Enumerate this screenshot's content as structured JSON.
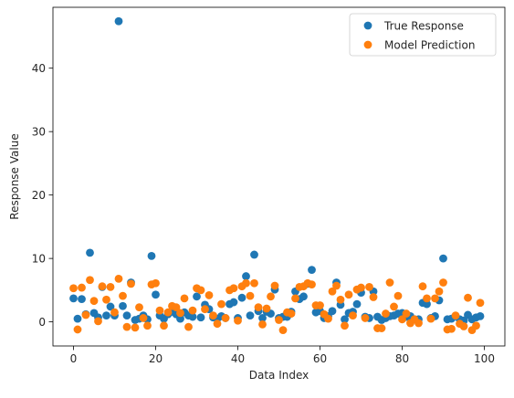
{
  "chart_data": {
    "type": "scatter",
    "title": "",
    "xlabel": "Data Index",
    "ylabel": "Response Value",
    "xlim": [
      -5,
      105
    ],
    "ylim": [
      -3.8,
      49.6
    ],
    "xticks": [
      0,
      20,
      40,
      60,
      80,
      100
    ],
    "yticks": [
      0,
      10,
      20,
      30,
      40
    ],
    "grid": false,
    "legend_position": "top-right",
    "series": [
      {
        "name": "True Response",
        "color": "#1f77b4",
        "x": [
          0,
          1,
          2,
          3,
          4,
          5,
          6,
          7,
          8,
          9,
          10,
          11,
          12,
          13,
          14,
          15,
          16,
          17,
          18,
          19,
          20,
          21,
          22,
          23,
          24,
          25,
          26,
          27,
          28,
          29,
          30,
          31,
          32,
          33,
          34,
          35,
          36,
          37,
          38,
          39,
          40,
          41,
          42,
          43,
          44,
          45,
          46,
          47,
          48,
          49,
          50,
          51,
          52,
          53,
          54,
          55,
          56,
          57,
          58,
          59,
          60,
          61,
          62,
          63,
          64,
          65,
          66,
          67,
          68,
          69,
          70,
          71,
          72,
          73,
          74,
          75,
          76,
          77,
          78,
          79,
          80,
          81,
          82,
          83,
          84,
          85,
          86,
          87,
          88,
          89,
          90,
          91,
          92,
          93,
          94,
          95,
          96,
          97,
          98,
          99
        ],
        "y": [
          3.7,
          0.5,
          3.6,
          1.2,
          10.9,
          1.4,
          0.7,
          5.5,
          1.0,
          2.4,
          1.0,
          47.4,
          2.5,
          1.0,
          6.2,
          0.3,
          0.5,
          1.0,
          0.4,
          10.4,
          4.3,
          1.0,
          0.5,
          1.2,
          1.6,
          1.2,
          0.5,
          1.5,
          1.0,
          0.8,
          4.0,
          0.7,
          2.7,
          2.0,
          0.7,
          0.5,
          0.9,
          0.6,
          2.8,
          3.1,
          0.6,
          3.8,
          7.2,
          1.0,
          10.6,
          1.7,
          0.6,
          1.6,
          1.3,
          5.1,
          0.6,
          0.8,
          0.8,
          1.6,
          4.8,
          3.6,
          4.0,
          6.0,
          8.2,
          1.5,
          1.7,
          0.6,
          0.9,
          1.7,
          6.2,
          2.7,
          0.4,
          1.4,
          1.6,
          2.8,
          4.6,
          0.8,
          0.6,
          4.8,
          0.8,
          0.3,
          0.6,
          0.9,
          1.0,
          1.3,
          1.4,
          0.8,
          0.9,
          0.4,
          0.4,
          3.0,
          2.8,
          0.6,
          0.9,
          3.4,
          10.0,
          0.4,
          0.5,
          0.9,
          0.4,
          0.2,
          1.1,
          0.4,
          0.7,
          0.9
        ]
      },
      {
        "name": "Model Prediction",
        "color": "#ff7f0e",
        "x": [
          0,
          1,
          2,
          3,
          4,
          5,
          6,
          7,
          8,
          9,
          10,
          11,
          12,
          13,
          14,
          15,
          16,
          17,
          18,
          19,
          20,
          21,
          22,
          23,
          24,
          25,
          26,
          27,
          28,
          29,
          30,
          31,
          32,
          33,
          34,
          35,
          36,
          37,
          38,
          39,
          40,
          41,
          42,
          43,
          44,
          45,
          46,
          47,
          48,
          49,
          50,
          51,
          52,
          53,
          54,
          55,
          56,
          57,
          58,
          59,
          60,
          61,
          62,
          63,
          64,
          65,
          66,
          67,
          68,
          69,
          70,
          71,
          72,
          73,
          74,
          75,
          76,
          77,
          78,
          79,
          80,
          81,
          82,
          83,
          84,
          85,
          86,
          87,
          88,
          89,
          90,
          91,
          92,
          93,
          94,
          95,
          96,
          97,
          98,
          99
        ],
        "y": [
          5.3,
          -1.2,
          5.4,
          1.1,
          6.6,
          3.3,
          0.1,
          5.6,
          3.5,
          5.5,
          1.5,
          6.8,
          4.1,
          -0.8,
          6.0,
          -0.9,
          2.3,
          0.6,
          -0.6,
          5.9,
          6.1,
          1.8,
          -0.6,
          1.5,
          2.5,
          2.3,
          1.4,
          3.7,
          -0.8,
          1.8,
          5.3,
          5.0,
          2.0,
          4.2,
          1.0,
          -0.3,
          2.8,
          0.6,
          5.0,
          5.3,
          0.2,
          5.6,
          6.1,
          4.1,
          6.1,
          2.3,
          -0.4,
          2.1,
          4.0,
          5.7,
          0.3,
          -1.3,
          1.5,
          1.3,
          3.7,
          5.5,
          5.6,
          6.1,
          5.9,
          2.6,
          2.6,
          1.2,
          0.5,
          4.8,
          5.7,
          3.5,
          -0.6,
          4.3,
          1.0,
          5.1,
          5.4,
          0.6,
          5.5,
          3.9,
          -1.0,
          -1.0,
          1.3,
          6.2,
          2.4,
          4.1,
          0.4,
          1.3,
          -0.2,
          0.4,
          -0.2,
          5.6,
          3.7,
          0.5,
          3.7,
          4.8,
          6.2,
          -1.2,
          -1.1,
          1.0,
          -0.3,
          -0.7,
          3.8,
          -1.3,
          -0.6,
          3.0
        ]
      }
    ]
  }
}
